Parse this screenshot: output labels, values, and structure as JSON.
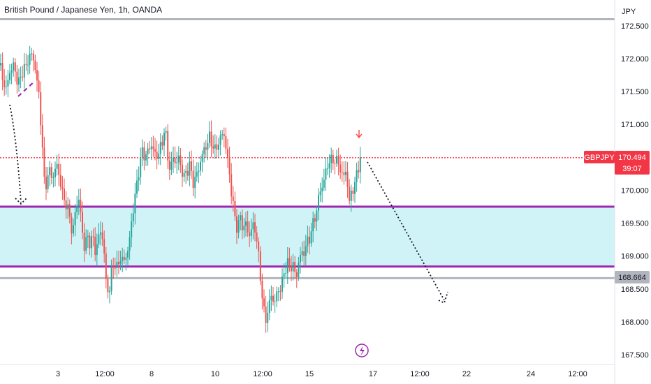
{
  "header": {
    "title": "British Pound / Japanese Yen, 1h, OANDA"
  },
  "price_axis": {
    "currency": "JPY",
    "ticks": [
      "172.500",
      "172.000",
      "171.500",
      "171.000",
      "170.000",
      "169.500",
      "169.000",
      "168.500",
      "168.000",
      "167.500"
    ]
  },
  "time_axis": {
    "ticks": [
      "3",
      "12:00",
      "8",
      "10",
      "12:00",
      "15",
      "17",
      "12:00",
      "22",
      "24",
      "12:00"
    ]
  },
  "badges": {
    "symbol": "GBPJPY",
    "price": "170.494",
    "countdown": "39:07",
    "level": "168.664"
  },
  "colors": {
    "up": "#26a69a",
    "down": "#ef5350",
    "zone_fill": "#d0f3f7",
    "zone_line": "#9c27b0",
    "price_line": "#f23645",
    "level_line": "#b2b5be",
    "dotted_arrow": "#131722",
    "lightning": "#9c27b0"
  },
  "chart_data": {
    "type": "candlestick",
    "title": "British Pound / Japanese Yen, 1h, OANDA",
    "ylabel": "JPY",
    "ylim": [
      167.4,
      172.65
    ],
    "horizontal_lines": [
      {
        "name": "top level",
        "value": 172.6
      },
      {
        "name": "current price",
        "value": 170.494
      },
      {
        "name": "zone upper",
        "value": 169.75
      },
      {
        "name": "zone lower",
        "value": 168.84
      },
      {
        "name": "support",
        "value": 168.664
      }
    ],
    "zone": [
      168.84,
      169.75
    ],
    "current_price": 170.494,
    "path": [
      [
        0,
        171.9
      ],
      [
        8,
        171.5
      ],
      [
        14,
        171.8
      ],
      [
        20,
        171.9
      ],
      [
        26,
        171.6
      ],
      [
        32,
        171.8
      ],
      [
        38,
        171.9
      ],
      [
        44,
        172.1
      ],
      [
        50,
        171.9
      ],
      [
        56,
        171.4
      ],
      [
        60,
        170.8
      ],
      [
        64,
        170.0
      ],
      [
        70,
        170.3
      ],
      [
        76,
        170.2
      ],
      [
        82,
        170.4
      ],
      [
        88,
        170.0
      ],
      [
        94,
        169.8
      ],
      [
        100,
        169.6
      ],
      [
        104,
        169.3
      ],
      [
        108,
        169.7
      ],
      [
        112,
        169.9
      ],
      [
        116,
        169.6
      ],
      [
        120,
        169.1
      ],
      [
        124,
        169.3
      ],
      [
        128,
        169.2
      ],
      [
        132,
        169.3
      ],
      [
        136,
        169.1
      ],
      [
        140,
        169.2
      ],
      [
        144,
        169.4
      ],
      [
        148,
        169.2
      ],
      [
        152,
        168.6
      ],
      [
        156,
        168.4
      ],
      [
        160,
        168.8
      ],
      [
        164,
        168.9
      ],
      [
        168,
        168.8
      ],
      [
        172,
        169.0
      ],
      [
        176,
        168.9
      ],
      [
        180,
        169.0
      ],
      [
        184,
        169.1
      ],
      [
        188,
        169.5
      ],
      [
        192,
        169.8
      ],
      [
        196,
        170.1
      ],
      [
        200,
        170.4
      ],
      [
        204,
        170.6
      ],
      [
        208,
        170.5
      ],
      [
        212,
        170.6
      ],
      [
        216,
        170.7
      ],
      [
        220,
        170.6
      ],
      [
        224,
        170.5
      ],
      [
        228,
        170.6
      ],
      [
        232,
        170.7
      ],
      [
        236,
        171.0
      ],
      [
        240,
        170.5
      ],
      [
        244,
        170.3
      ],
      [
        248,
        170.5
      ],
      [
        252,
        170.4
      ],
      [
        256,
        170.5
      ],
      [
        260,
        170.3
      ],
      [
        264,
        170.2
      ],
      [
        268,
        170.3
      ],
      [
        272,
        170.4
      ],
      [
        276,
        170.1
      ],
      [
        280,
        170.2
      ],
      [
        284,
        170.3
      ],
      [
        288,
        170.5
      ],
      [
        292,
        170.6
      ],
      [
        296,
        170.7
      ],
      [
        300,
        170.8
      ],
      [
        304,
        170.7
      ],
      [
        308,
        170.6
      ],
      [
        312,
        170.7
      ],
      [
        316,
        170.8
      ],
      [
        320,
        170.9
      ],
      [
        324,
        170.6
      ],
      [
        328,
        170.3
      ],
      [
        332,
        169.9
      ],
      [
        336,
        169.6
      ],
      [
        340,
        169.4
      ],
      [
        344,
        169.6
      ],
      [
        348,
        169.4
      ],
      [
        352,
        169.5
      ],
      [
        356,
        169.3
      ],
      [
        360,
        169.4
      ],
      [
        364,
        169.5
      ],
      [
        368,
        169.2
      ],
      [
        372,
        168.8
      ],
      [
        376,
        168.3
      ],
      [
        380,
        168.0
      ],
      [
        384,
        168.2
      ],
      [
        388,
        168.4
      ],
      [
        392,
        168.3
      ],
      [
        396,
        168.4
      ],
      [
        400,
        168.5
      ],
      [
        404,
        168.6
      ],
      [
        408,
        168.8
      ],
      [
        412,
        168.9
      ],
      [
        416,
        168.8
      ],
      [
        420,
        168.9
      ],
      [
        424,
        168.6
      ],
      [
        428,
        169.0
      ],
      [
        432,
        169.0
      ],
      [
        436,
        169.1
      ],
      [
        440,
        169.2
      ],
      [
        444,
        169.3
      ],
      [
        448,
        169.5
      ],
      [
        452,
        169.6
      ],
      [
        456,
        169.9
      ],
      [
        460,
        170.0
      ],
      [
        464,
        170.2
      ],
      [
        468,
        170.3
      ],
      [
        472,
        170.5
      ],
      [
        476,
        170.4
      ],
      [
        480,
        170.5
      ],
      [
        484,
        170.4
      ],
      [
        488,
        170.3
      ],
      [
        492,
        170.2
      ],
      [
        496,
        170.3
      ],
      [
        500,
        169.8
      ],
      [
        504,
        170.0
      ],
      [
        508,
        170.1
      ],
      [
        512,
        170.3
      ],
      [
        516,
        170.5
      ]
    ]
  }
}
